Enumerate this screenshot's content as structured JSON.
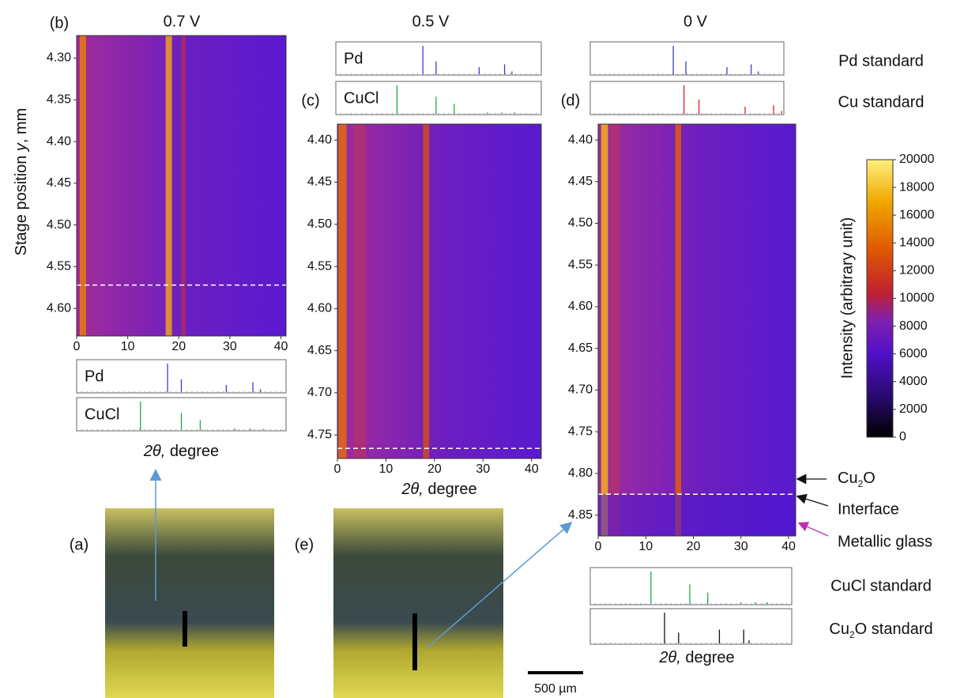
{
  "y_axis_label": [
    "Stage position ",
    "y",
    ", mm"
  ],
  "heatmaps": [
    {
      "label": "(b)",
      "title": "0.7 V",
      "xlim": [
        0,
        41
      ],
      "xticks": [
        0,
        10,
        20,
        30,
        40
      ],
      "ylim": [
        4.273,
        4.633
      ],
      "yticks": [
        {
          "value": 4.3,
          "label": "4.30"
        },
        {
          "value": 4.35,
          "label": "4.35"
        },
        {
          "value": 4.4,
          "label": "4.40"
        },
        {
          "value": 4.45,
          "label": "4.45"
        },
        {
          "value": 4.5,
          "label": "4.50"
        },
        {
          "value": 4.55,
          "label": "4.55"
        },
        {
          "value": 4.6,
          "label": "4.60"
        }
      ],
      "interface": 4.572,
      "xlabel": [
        "2θ,",
        " degree"
      ],
      "standards": [
        {
          "name": "Pd",
          "color": "#3b3bd6",
          "peaks": [
            17.8,
            20.5,
            29.3,
            34.5,
            36
          ],
          "heights": [
            1,
            0.45,
            0.25,
            0.35,
            0.1
          ]
        },
        {
          "name": "CuCl",
          "color": "#1fa84f",
          "peaks": [
            12.5,
            20.5,
            24.2,
            31,
            34,
            36.5
          ],
          "heights": [
            1,
            0.6,
            0.35,
            0.05,
            0.05,
            0.05
          ]
        }
      ]
    },
    {
      "label": "(c)",
      "title": "0.5 V",
      "xlim": [
        0,
        42
      ],
      "xticks": [
        0,
        10,
        20,
        30,
        40
      ],
      "ylim": [
        4.381,
        4.778
      ],
      "yticks": [
        {
          "value": 4.4,
          "label": "4.40"
        },
        {
          "value": 4.45,
          "label": "4.45"
        },
        {
          "value": 4.5,
          "label": "4.50"
        },
        {
          "value": 4.55,
          "label": "4.55"
        },
        {
          "value": 4.6,
          "label": "4.60"
        },
        {
          "value": 4.65,
          "label": "4.65"
        },
        {
          "value": 4.7,
          "label": "4.70"
        },
        {
          "value": 4.75,
          "label": "4.75"
        }
      ],
      "interface": 4.766,
      "xlabel": [
        "2θ,",
        " degree"
      ],
      "standards": [
        {
          "name": "Pd",
          "color": "#3b3bd6",
          "peaks": [
            17.8,
            20.5,
            29.3,
            34.5,
            36
          ],
          "heights": [
            1,
            0.45,
            0.25,
            0.35,
            0.1
          ]
        },
        {
          "name": "CuCl",
          "color": "#1fa84f",
          "peaks": [
            12.5,
            20.5,
            24.2,
            31,
            34,
            36.5
          ],
          "heights": [
            1,
            0.6,
            0.35,
            0.05,
            0.05,
            0.05
          ]
        }
      ]
    },
    {
      "label": "(d)",
      "title": "0 V",
      "xlim": [
        0,
        41.5
      ],
      "xticks": [
        0,
        10,
        20,
        30,
        40
      ],
      "ylim": [
        4.381,
        4.875
      ],
      "yticks": [
        {
          "value": 4.4,
          "label": "4.40"
        },
        {
          "value": 4.45,
          "label": "4.45"
        },
        {
          "value": 4.5,
          "label": "4.50"
        },
        {
          "value": 4.55,
          "label": "4.55"
        },
        {
          "value": 4.6,
          "label": "4.60"
        },
        {
          "value": 4.65,
          "label": "4.65"
        },
        {
          "value": 4.7,
          "label": "4.70"
        },
        {
          "value": 4.75,
          "label": "4.75"
        },
        {
          "value": 4.8,
          "label": "4.80"
        },
        {
          "value": 4.85,
          "label": "4.85"
        }
      ],
      "interface": 4.825,
      "xlabel": [
        "2θ,",
        " degree"
      ],
      "standards": [
        {
          "name": "Pd standard",
          "color": "#3b3bd6",
          "peaks": [
            17.8,
            20.5,
            29.3,
            34.5,
            36
          ],
          "heights": [
            1,
            0.45,
            0.25,
            0.35,
            0.1
          ]
        },
        {
          "name": "Cu standard",
          "color": "#e02020",
          "peaks": [
            20.1,
            23.3,
            33.2,
            39.3,
            41
          ],
          "heights": [
            1,
            0.5,
            0.25,
            0.3,
            0.1
          ]
        },
        {
          "name": "CuCl standard",
          "color": "#1fa84f",
          "peaks": [
            12.5,
            20.5,
            24.2,
            31,
            34,
            36.5
          ],
          "heights": [
            1,
            0.6,
            0.35,
            0.05,
            0.05,
            0.05
          ]
        },
        {
          "name": [
            "Cu",
            "2",
            "O standard"
          ],
          "color": "#111111",
          "peaks": [
            15.3,
            18.2,
            26.6,
            31.6,
            32.7
          ],
          "heights": [
            1,
            0.35,
            0.45,
            0.45,
            0.1
          ]
        }
      ]
    }
  ],
  "colorbar": {
    "label": "Intensity (arbitrary unit)",
    "lim": [
      0,
      20000
    ],
    "ticks": [
      0,
      2000,
      4000,
      6000,
      8000,
      10000,
      12000,
      14000,
      16000,
      18000,
      20000
    ]
  },
  "photos": [
    {
      "label": "(a)"
    },
    {
      "label": "(e)"
    }
  ],
  "scale_bar": "500 µm",
  "annotations": [
    {
      "text": [
        "Cu",
        "2",
        "O"
      ],
      "color": "#111111"
    },
    {
      "text": "Interface",
      "color": "#111111"
    },
    {
      "text": "Metallic glass",
      "color": "#c02fb0"
    }
  ]
}
